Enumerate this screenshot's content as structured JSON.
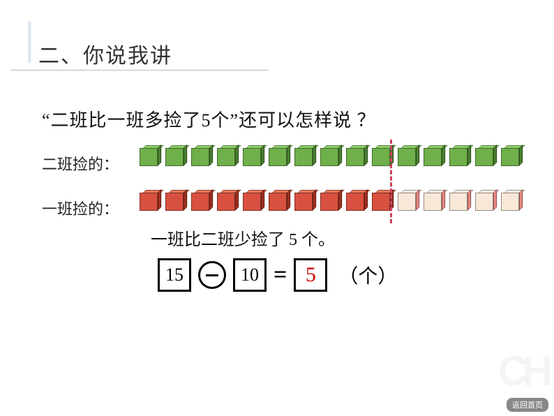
{
  "section_title": "二、你说我讲",
  "question": "“二班比一班多捡了5个”还可以怎样说 ？",
  "row1": {
    "label": "二班捡的："
  },
  "row2": {
    "label": "一班捡的："
  },
  "cubes": {
    "row1_count": 15,
    "row2_count_solid": 10,
    "row2_count_faded": 5,
    "green_front": "#6fb04a",
    "green_top": "#8fd06a",
    "green_side": "#4a8030",
    "red_front": "#d85040",
    "red_top": "#e87858",
    "red_side": "#a03020",
    "red_faded_front": "#f8e8d8",
    "red_faded_top": "#fff0e8",
    "red_faded_side": "#e88880"
  },
  "conclusion": "一班比二班少捡了 5 个。",
  "equation": {
    "a": "15",
    "b": "10",
    "result": "5",
    "unit": "（个）"
  },
  "watermark": "CH",
  "return_label": "返回首页"
}
